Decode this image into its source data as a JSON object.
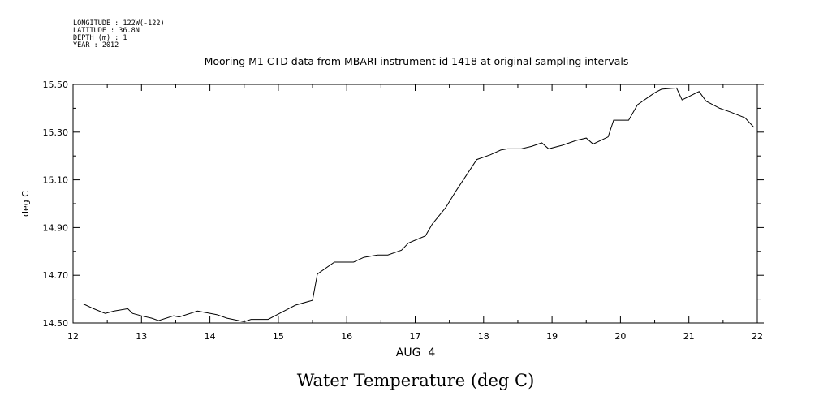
{
  "header": {
    "longitude": "LONGITUDE : 122W(-122)",
    "latitude": "LATITUDE : 36.8N",
    "depth": "DEPTH (m) : 1",
    "year": "YEAR : 2012"
  },
  "chart_data": {
    "type": "line",
    "title": "Mooring M1 CTD data from MBARI instrument id 1418 at original sampling intervals",
    "xlabel": "AUG  4",
    "ylabel": "deg C",
    "caption": "Water Temperature (deg C)",
    "xlim": [
      12,
      22
    ],
    "ylim": [
      14.5,
      15.5
    ],
    "x_ticks": [
      "12",
      "13",
      "14",
      "15",
      "16",
      "17",
      "18",
      "19",
      "20",
      "21",
      "22"
    ],
    "y_ticks": [
      "14.50",
      "14.70",
      "14.90",
      "15.10",
      "15.30",
      "15.50"
    ],
    "grid": false,
    "series": [
      {
        "x": [
          12.15,
          12.3,
          12.47,
          12.6,
          12.8,
          12.87,
          13.0,
          13.15,
          13.25,
          13.47,
          13.55,
          13.82,
          14.1,
          14.25,
          14.5,
          14.6,
          14.85,
          15.05,
          15.25,
          15.5,
          15.57,
          15.82,
          16.1,
          16.25,
          16.45,
          16.6,
          16.8,
          16.9,
          17.15,
          17.25,
          17.45,
          17.6,
          17.9,
          18.1,
          18.25,
          18.35,
          18.55,
          18.7,
          18.85,
          18.95,
          19.15,
          19.35,
          19.5,
          19.6,
          19.82,
          19.9,
          20.12,
          20.25,
          20.5,
          20.6,
          20.82,
          20.9,
          21.15,
          21.25,
          21.45,
          21.6,
          21.82,
          21.95
        ],
        "y": [
          14.58,
          14.56,
          14.54,
          14.55,
          14.56,
          14.54,
          14.53,
          14.52,
          14.51,
          14.53,
          14.525,
          14.55,
          14.535,
          14.52,
          14.505,
          14.515,
          14.515,
          14.545,
          14.575,
          14.595,
          14.705,
          14.755,
          14.755,
          14.775,
          14.785,
          14.785,
          14.805,
          14.835,
          14.865,
          14.915,
          14.985,
          15.055,
          15.185,
          15.205,
          15.225,
          15.23,
          15.23,
          15.24,
          15.255,
          15.23,
          15.245,
          15.265,
          15.275,
          15.25,
          15.28,
          15.35,
          15.35,
          15.415,
          15.465,
          15.48,
          15.485,
          15.435,
          15.47,
          15.43,
          15.4,
          15.385,
          15.36,
          15.32
        ]
      }
    ]
  }
}
